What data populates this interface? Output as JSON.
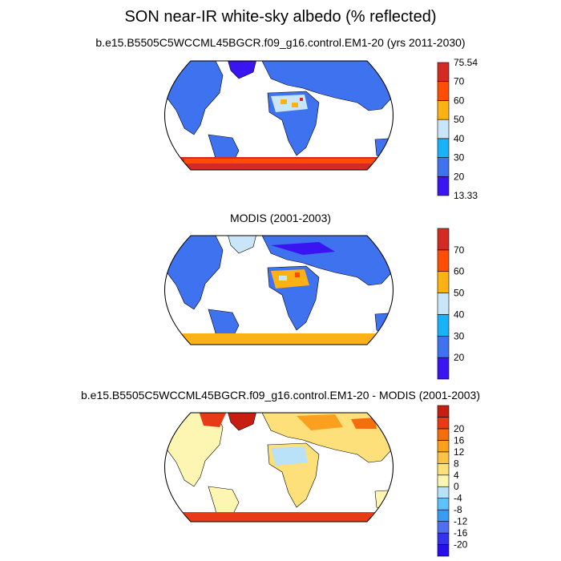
{
  "title": "SON near-IR white-sky albedo (% reflected)",
  "panels": [
    {
      "subtitle": "b.e15.B5505C5WCCML45BGCR.f09_g16.control.EM1-20 (yrs 2011-2030)",
      "colorbar": {
        "colors": [
          "#3b14f2",
          "#3f72ee",
          "#19b2f7",
          "#c9e6f8",
          "#fcb114",
          "#ff4d05",
          "#d42a26"
        ],
        "labels": [
          "13.33",
          "20",
          "30",
          "40",
          "50",
          "60",
          "70",
          "75.54"
        ]
      }
    },
    {
      "subtitle": "MODIS (2001-2003)",
      "colorbar": {
        "colors": [
          "#3b14f2",
          "#3f72ee",
          "#19b2f7",
          "#c9e6f8",
          "#fcb114",
          "#ff4d05",
          "#d42a26"
        ],
        "labels": [
          "",
          "20",
          "30",
          "40",
          "50",
          "60",
          "70",
          ""
        ]
      }
    },
    {
      "subtitle": "b.e15.B5505C5WCCML45BGCR.f09_g16.control.EM1-20 - MODIS (2001-2003)",
      "colorbar": {
        "colors": [
          "#2a10e8",
          "#3333ee",
          "#4f6ef0",
          "#3b9af5",
          "#5cc2f7",
          "#b9e1f7",
          "#fdf6b3",
          "#fde07a",
          "#fcc244",
          "#fb9f1e",
          "#f66d0b",
          "#e63b14",
          "#c81e12"
        ],
        "labels": [
          "-20",
          "-16",
          "-12",
          "-8",
          "-4",
          "0",
          "4",
          "8",
          "12",
          "16",
          "20"
        ]
      }
    }
  ]
}
